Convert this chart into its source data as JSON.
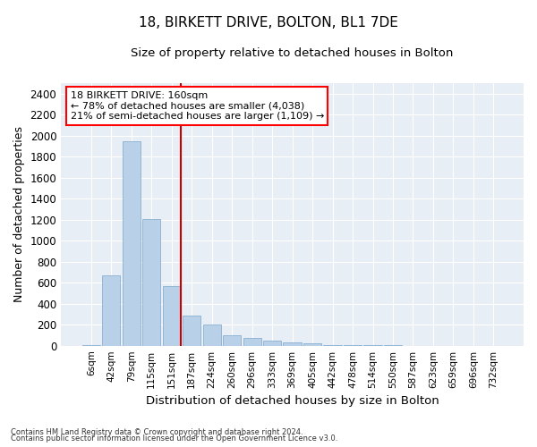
{
  "title": "18, BIRKETT DRIVE, BOLTON, BL1 7DE",
  "subtitle": "Size of property relative to detached houses in Bolton",
  "xlabel": "Distribution of detached houses by size in Bolton",
  "ylabel": "Number of detached properties",
  "annotation_title": "18 BIRKETT DRIVE: 160sqm",
  "annotation_line1": "← 78% of detached houses are smaller (4,038)",
  "annotation_line2": "21% of semi-detached houses are larger (1,109) →",
  "footer_line1": "Contains HM Land Registry data © Crown copyright and database right 2024.",
  "footer_line2": "Contains public sector information licensed under the Open Government Licence v3.0.",
  "bin_labels": [
    "6sqm",
    "42sqm",
    "79sqm",
    "115sqm",
    "151sqm",
    "187sqm",
    "224sqm",
    "260sqm",
    "296sqm",
    "333sqm",
    "369sqm",
    "405sqm",
    "442sqm",
    "478sqm",
    "514sqm",
    "550sqm",
    "587sqm",
    "623sqm",
    "659sqm",
    "696sqm",
    "732sqm"
  ],
  "bar_values": [
    5,
    670,
    1950,
    1210,
    570,
    290,
    200,
    100,
    75,
    50,
    30,
    20,
    10,
    5,
    3,
    2,
    1,
    0,
    0,
    0,
    0
  ],
  "bar_color": "#b8d0e8",
  "bar_edge_color": "#7ba7cb",
  "highlight_color": "#cc0000",
  "ylim": [
    0,
    2500
  ],
  "yticks": [
    0,
    200,
    400,
    600,
    800,
    1000,
    1200,
    1400,
    1600,
    1800,
    2000,
    2200,
    2400
  ],
  "figsize": [
    6.0,
    5.0
  ],
  "dpi": 100,
  "fig_bg_color": "#ffffff",
  "plot_bg_color": "#e8eef5"
}
